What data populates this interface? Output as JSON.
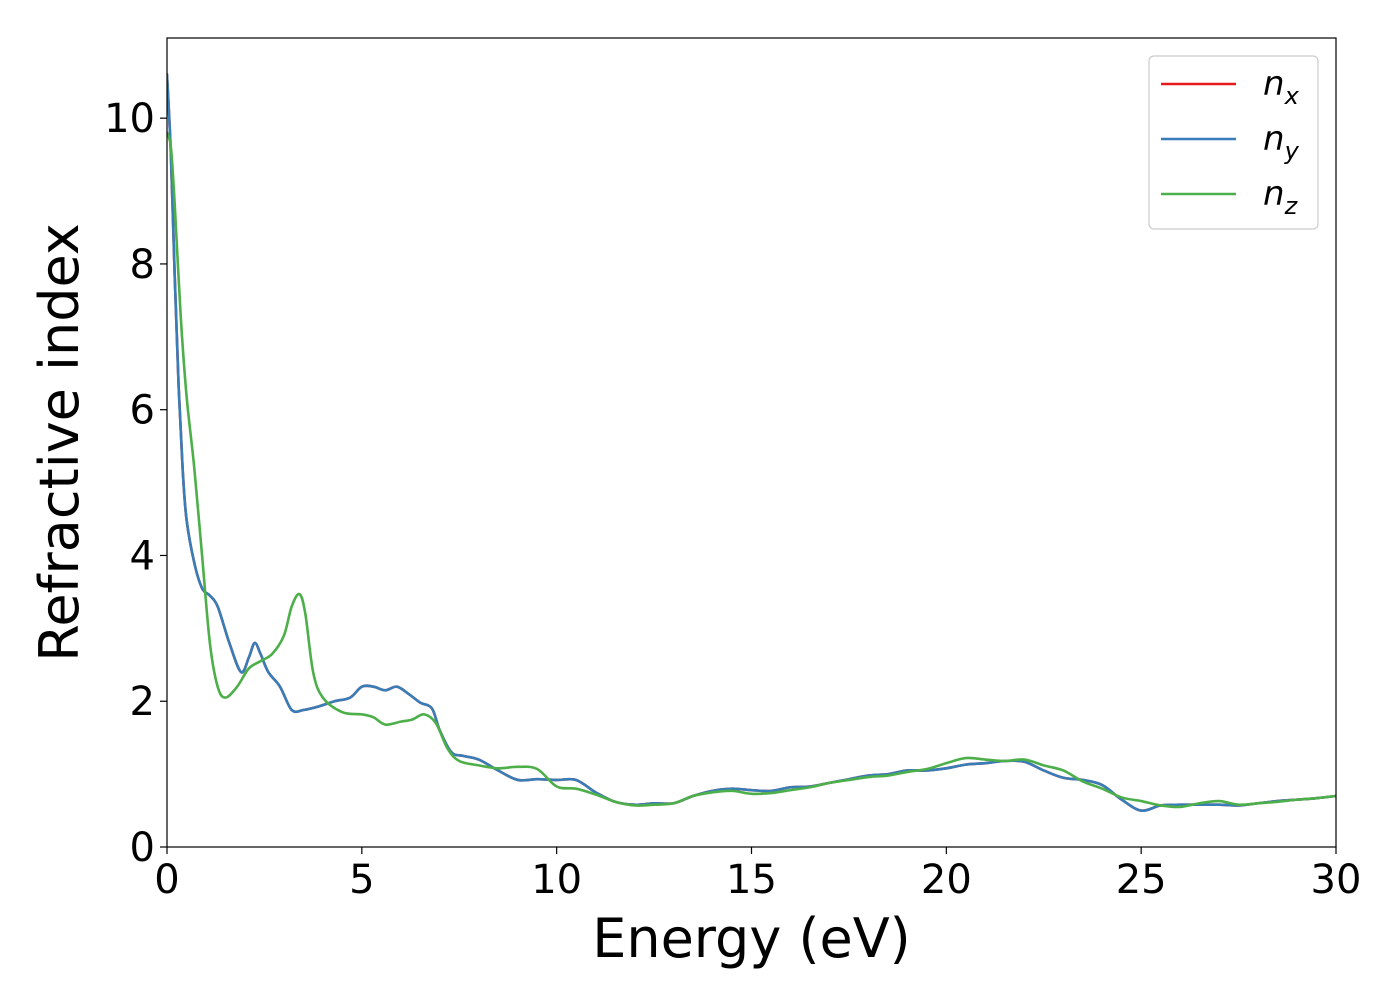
{
  "chart_data": {
    "type": "line",
    "xlabel": "Energy (eV)",
    "ylabel": "Refractive index",
    "xlim": [
      0,
      30
    ],
    "ylim": [
      0,
      11.1
    ],
    "xticks": [
      0,
      5,
      10,
      15,
      20,
      25,
      30
    ],
    "yticks": [
      0,
      2,
      4,
      6,
      8,
      10
    ],
    "grid": false,
    "legend_position": "top-right",
    "series": [
      {
        "name": "n_x",
        "name_main": "n",
        "name_sub": "x",
        "color": "#e41a1c",
        "x": [
          0,
          0.1,
          0.2,
          0.3,
          0.4,
          0.5,
          0.7,
          0.9,
          1.1,
          1.3,
          1.6,
          1.9,
          2.1,
          2.25,
          2.4,
          2.6,
          2.9,
          3.2,
          3.5,
          3.9,
          4.3,
          4.7,
          5.0,
          5.3,
          5.6,
          5.9,
          6.2,
          6.5,
          6.8,
          7.0,
          7.3,
          7.6,
          8.0,
          8.5,
          9.0,
          9.5,
          10.0,
          10.5,
          11.0,
          11.5,
          12.0,
          12.5,
          13.0,
          13.5,
          14.0,
          14.5,
          15.0,
          15.5,
          16.0,
          16.5,
          17.0,
          17.5,
          18.0,
          18.5,
          19.0,
          19.5,
          20.0,
          20.5,
          21.0,
          21.5,
          22.0,
          22.5,
          23.0,
          23.5,
          24.0,
          24.5,
          25.0,
          25.5,
          26.0,
          26.5,
          27.0,
          27.5,
          28.0,
          28.5,
          29.0,
          29.5,
          30.0
        ],
        "values": [
          10.6,
          9.5,
          7.8,
          6.3,
          5.2,
          4.5,
          3.9,
          3.55,
          3.45,
          3.3,
          2.8,
          2.4,
          2.6,
          2.8,
          2.65,
          2.4,
          2.2,
          1.88,
          1.88,
          1.93,
          2.0,
          2.05,
          2.2,
          2.2,
          2.15,
          2.2,
          2.1,
          1.98,
          1.9,
          1.6,
          1.3,
          1.25,
          1.2,
          1.05,
          0.92,
          0.93,
          0.92,
          0.92,
          0.75,
          0.62,
          0.58,
          0.6,
          0.6,
          0.7,
          0.77,
          0.8,
          0.78,
          0.77,
          0.82,
          0.83,
          0.88,
          0.93,
          0.98,
          1.0,
          1.05,
          1.05,
          1.08,
          1.13,
          1.15,
          1.18,
          1.17,
          1.05,
          0.95,
          0.92,
          0.85,
          0.65,
          0.5,
          0.57,
          0.58,
          0.58,
          0.58,
          0.57,
          0.6,
          0.63,
          0.65,
          0.67,
          0.7
        ]
      },
      {
        "name": "n_y",
        "name_main": "n",
        "name_sub": "y",
        "color": "#377eb8",
        "x": [
          0,
          0.1,
          0.2,
          0.3,
          0.4,
          0.5,
          0.7,
          0.9,
          1.1,
          1.3,
          1.6,
          1.9,
          2.1,
          2.25,
          2.4,
          2.6,
          2.9,
          3.2,
          3.5,
          3.9,
          4.3,
          4.7,
          5.0,
          5.3,
          5.6,
          5.9,
          6.2,
          6.5,
          6.8,
          7.0,
          7.3,
          7.6,
          8.0,
          8.5,
          9.0,
          9.5,
          10.0,
          10.5,
          11.0,
          11.5,
          12.0,
          12.5,
          13.0,
          13.5,
          14.0,
          14.5,
          15.0,
          15.5,
          16.0,
          16.5,
          17.0,
          17.5,
          18.0,
          18.5,
          19.0,
          19.5,
          20.0,
          20.5,
          21.0,
          21.5,
          22.0,
          22.5,
          23.0,
          23.5,
          24.0,
          24.5,
          25.0,
          25.5,
          26.0,
          26.5,
          27.0,
          27.5,
          28.0,
          28.5,
          29.0,
          29.5,
          30.0
        ],
        "values": [
          10.6,
          9.5,
          7.8,
          6.3,
          5.2,
          4.5,
          3.9,
          3.55,
          3.45,
          3.3,
          2.8,
          2.4,
          2.6,
          2.8,
          2.65,
          2.4,
          2.2,
          1.88,
          1.88,
          1.93,
          2.0,
          2.05,
          2.2,
          2.2,
          2.15,
          2.2,
          2.1,
          1.98,
          1.9,
          1.6,
          1.3,
          1.25,
          1.2,
          1.05,
          0.92,
          0.93,
          0.92,
          0.92,
          0.75,
          0.62,
          0.58,
          0.6,
          0.6,
          0.7,
          0.77,
          0.8,
          0.78,
          0.77,
          0.82,
          0.83,
          0.88,
          0.93,
          0.98,
          1.0,
          1.05,
          1.05,
          1.08,
          1.13,
          1.15,
          1.18,
          1.17,
          1.05,
          0.95,
          0.92,
          0.85,
          0.65,
          0.5,
          0.57,
          0.58,
          0.58,
          0.58,
          0.57,
          0.6,
          0.63,
          0.65,
          0.67,
          0.7
        ]
      },
      {
        "name": "n_z",
        "name_main": "n",
        "name_sub": "z",
        "color": "#4daf4a",
        "x": [
          0,
          0.1,
          0.2,
          0.35,
          0.5,
          0.7,
          0.9,
          1.1,
          1.3,
          1.5,
          1.8,
          2.1,
          2.4,
          2.7,
          3.0,
          3.2,
          3.4,
          3.55,
          3.75,
          4.0,
          4.5,
          5.0,
          5.3,
          5.6,
          6.0,
          6.3,
          6.6,
          6.9,
          7.2,
          7.5,
          8.0,
          8.5,
          9.0,
          9.5,
          10.0,
          10.5,
          11.0,
          11.5,
          12.0,
          12.5,
          13.0,
          13.5,
          14.0,
          14.5,
          15.0,
          15.5,
          16.0,
          16.5,
          17.0,
          17.5,
          18.0,
          18.5,
          19.0,
          19.5,
          20.0,
          20.5,
          21.0,
          21.5,
          22.0,
          22.5,
          23.0,
          23.5,
          24.0,
          24.5,
          25.0,
          25.5,
          26.0,
          26.5,
          27.0,
          27.5,
          28.0,
          28.5,
          29.0,
          29.5,
          30.0
        ],
        "values": [
          9.8,
          9.6,
          8.8,
          7.3,
          6.2,
          5.2,
          4.0,
          2.8,
          2.2,
          2.05,
          2.2,
          2.45,
          2.55,
          2.65,
          2.9,
          3.3,
          3.47,
          3.2,
          2.4,
          2.05,
          1.85,
          1.82,
          1.78,
          1.68,
          1.72,
          1.75,
          1.82,
          1.7,
          1.35,
          1.18,
          1.12,
          1.08,
          1.1,
          1.07,
          0.83,
          0.8,
          0.72,
          0.62,
          0.57,
          0.58,
          0.6,
          0.7,
          0.75,
          0.77,
          0.73,
          0.74,
          0.78,
          0.82,
          0.88,
          0.92,
          0.96,
          0.98,
          1.03,
          1.07,
          1.15,
          1.22,
          1.2,
          1.18,
          1.2,
          1.12,
          1.05,
          0.9,
          0.8,
          0.68,
          0.63,
          0.57,
          0.55,
          0.6,
          0.63,
          0.58,
          0.6,
          0.62,
          0.65,
          0.67,
          0.7
        ]
      }
    ]
  }
}
